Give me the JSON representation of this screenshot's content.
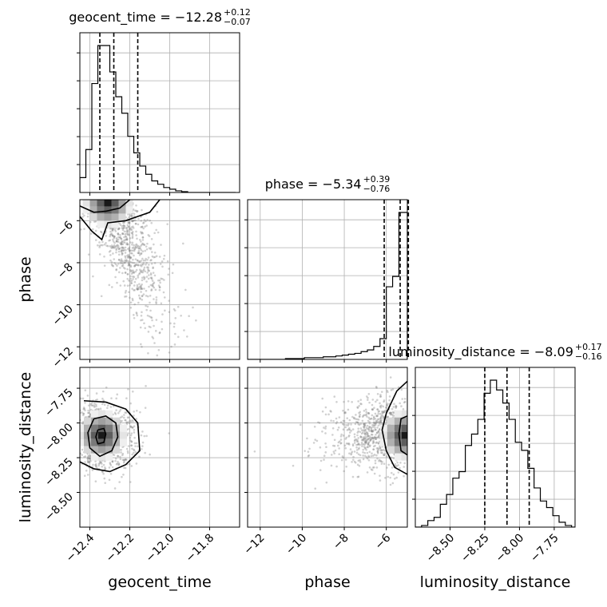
{
  "chart_data": {
    "type": "corner",
    "parameters": [
      {
        "name": "geocent_time",
        "range": [
          -12.45,
          -11.65
        ],
        "ticks": [
          -12.4,
          -12.2,
          -12.0,
          -11.8
        ],
        "tick_labels": [
          "−12.4",
          "−12.2",
          "−12.0",
          "−11.8"
        ],
        "quantiles": [
          -12.35,
          -12.28,
          -12.16
        ]
      },
      {
        "name": "phase",
        "range": [
          -12.6,
          -5.0
        ],
        "ticks": [
          -12,
          -10,
          -8,
          -6
        ],
        "tick_labels": [
          "−12",
          "−10",
          "−8",
          "−6"
        ],
        "quantiles": [
          -6.1,
          -5.34,
          -4.95
        ]
      },
      {
        "name": "luminosity_distance",
        "range": [
          -8.75,
          -7.6
        ],
        "ticks": [
          -8.5,
          -8.25,
          -8.0,
          -7.75
        ],
        "tick_labels": [
          "−8.50",
          "−8.25",
          "−8.00",
          "−7.75"
        ],
        "quantiles": [
          -8.25,
          -8.09,
          -7.93
        ]
      }
    ],
    "titles": [
      {
        "param": "geocent_time",
        "prefix": "geocent_time = −12.28",
        "upper": "+0.12",
        "lower": "−0.07"
      },
      {
        "param": "phase",
        "prefix": "phase = −5.34",
        "upper": "+0.39",
        "lower": "−0.76"
      },
      {
        "param": "luminosity_distance",
        "prefix": "luminosity_distance = −8.09",
        "upper": "+0.17",
        "lower": "−0.16"
      }
    ],
    "histograms": [
      {
        "param": "geocent_time",
        "edges": [
          -12.45,
          -12.42,
          -12.39,
          -12.36,
          -12.33,
          -12.3,
          -12.27,
          -12.24,
          -12.21,
          -12.18,
          -12.15,
          -12.12,
          -12.09,
          -12.06,
          -12.03,
          -12.0,
          -11.97,
          -11.94,
          -11.91,
          -11.88,
          -11.85,
          -11.82,
          -11.79,
          -11.76,
          -11.73,
          -11.7,
          -11.67
        ],
        "counts": [
          0.09,
          0.26,
          0.66,
          0.89,
          0.89,
          0.73,
          0.58,
          0.48,
          0.34,
          0.24,
          0.16,
          0.11,
          0.07,
          0.05,
          0.03,
          0.02,
          0.01,
          0.005,
          0,
          0,
          0,
          0,
          0,
          0,
          0,
          0
        ]
      },
      {
        "param": "phase",
        "edges": [
          -12.6,
          -12.3,
          -12.0,
          -11.7,
          -11.4,
          -11.1,
          -10.8,
          -10.5,
          -10.2,
          -9.9,
          -9.6,
          -9.3,
          -9.0,
          -8.7,
          -8.4,
          -8.1,
          -7.8,
          -7.5,
          -7.2,
          -6.9,
          -6.6,
          -6.3,
          -6.0,
          -5.7,
          -5.4,
          -5.1,
          -5.0
        ],
        "counts": [
          0,
          0,
          0,
          0,
          0,
          0,
          0.005,
          0.005,
          0.005,
          0.01,
          0.01,
          0.01,
          0.015,
          0.015,
          0.02,
          0.025,
          0.03,
          0.035,
          0.045,
          0.055,
          0.075,
          0.12,
          0.42,
          0.48,
          0.85,
          0.85
        ]
      },
      {
        "param": "luminosity_distance",
        "edges": [
          -8.75,
          -8.705,
          -8.66,
          -8.615,
          -8.57,
          -8.525,
          -8.48,
          -8.435,
          -8.39,
          -8.345,
          -8.3,
          -8.255,
          -8.21,
          -8.165,
          -8.12,
          -8.075,
          -8.03,
          -7.985,
          -7.94,
          -7.895,
          -7.85,
          -7.805,
          -7.76,
          -7.715,
          -7.67,
          -7.625,
          -7.6
        ],
        "counts": [
          0,
          0.01,
          0.04,
          0.06,
          0.14,
          0.2,
          0.3,
          0.34,
          0.5,
          0.57,
          0.66,
          0.82,
          0.9,
          0.84,
          0.76,
          0.66,
          0.52,
          0.47,
          0.36,
          0.24,
          0.16,
          0.12,
          0.07,
          0.03,
          0.01,
          0
        ]
      }
    ],
    "pairs": [
      {
        "x": "geocent_time",
        "y": "phase",
        "mode": {
          "x": -12.31,
          "y": -5.15
        },
        "contours": [
          {
            "level": 0.39,
            "points": [
              [
                -12.45,
                -5.3
              ],
              [
                -12.38,
                -5.6
              ],
              [
                -12.32,
                -5.55
              ],
              [
                -12.25,
                -5.4
              ],
              [
                -12.2,
                -5.0
              ]
            ]
          },
          {
            "level": 0.86,
            "points": [
              [
                -12.45,
                -5.8
              ],
              [
                -12.39,
                -6.5
              ],
              [
                -12.34,
                -6.9
              ],
              [
                -12.31,
                -6.1
              ],
              [
                -12.22,
                -6.0
              ],
              [
                -12.16,
                -5.8
              ],
              [
                -12.1,
                -5.6
              ],
              [
                -12.05,
                -5.0
              ]
            ]
          }
        ]
      },
      {
        "x": "geocent_time",
        "y": "luminosity_distance",
        "mode": {
          "x": -12.34,
          "y": -8.09
        },
        "contours": [
          {
            "level": 0.12,
            "points": [
              [
                -12.36,
                -8.05
              ],
              [
                -12.33,
                -8.04
              ],
              [
                -12.32,
                -8.08
              ],
              [
                -12.33,
                -8.14
              ],
              [
                -12.36,
                -8.15
              ],
              [
                -12.37,
                -8.1
              ],
              [
                -12.36,
                -8.05
              ]
            ]
          },
          {
            "level": 0.39,
            "points": [
              [
                -12.38,
                -7.97
              ],
              [
                -12.32,
                -7.95
              ],
              [
                -12.27,
                -8.0
              ],
              [
                -12.26,
                -8.1
              ],
              [
                -12.29,
                -8.2
              ],
              [
                -12.35,
                -8.24
              ],
              [
                -12.4,
                -8.18
              ],
              [
                -12.41,
                -8.07
              ],
              [
                -12.38,
                -7.97
              ]
            ]
          },
          {
            "level": 0.86,
            "points": [
              [
                -12.43,
                -7.84
              ],
              [
                -12.32,
                -7.85
              ],
              [
                -12.22,
                -7.9
              ],
              [
                -12.16,
                -8.0
              ],
              [
                -12.15,
                -8.2
              ],
              [
                -12.22,
                -8.3
              ],
              [
                -12.3,
                -8.35
              ],
              [
                -12.38,
                -8.33
              ],
              [
                -12.45,
                -8.28
              ]
            ]
          }
        ]
      },
      {
        "x": "phase",
        "y": "luminosity_distance",
        "mode": {
          "x": -5.1,
          "y": -8.09
        },
        "contours": [
          {
            "level": 0.39,
            "points": [
              [
                -5.0,
                -7.95
              ],
              [
                -5.3,
                -7.97
              ],
              [
                -5.4,
                -8.08
              ],
              [
                -5.3,
                -8.2
              ],
              [
                -5.0,
                -8.23
              ]
            ]
          },
          {
            "level": 0.86,
            "points": [
              [
                -5.0,
                -7.7
              ],
              [
                -5.5,
                -7.77
              ],
              [
                -6.0,
                -7.93
              ],
              [
                -6.2,
                -8.05
              ],
              [
                -6.0,
                -8.2
              ],
              [
                -5.6,
                -8.32
              ],
              [
                -5.0,
                -8.37
              ]
            ]
          }
        ]
      }
    ]
  }
}
